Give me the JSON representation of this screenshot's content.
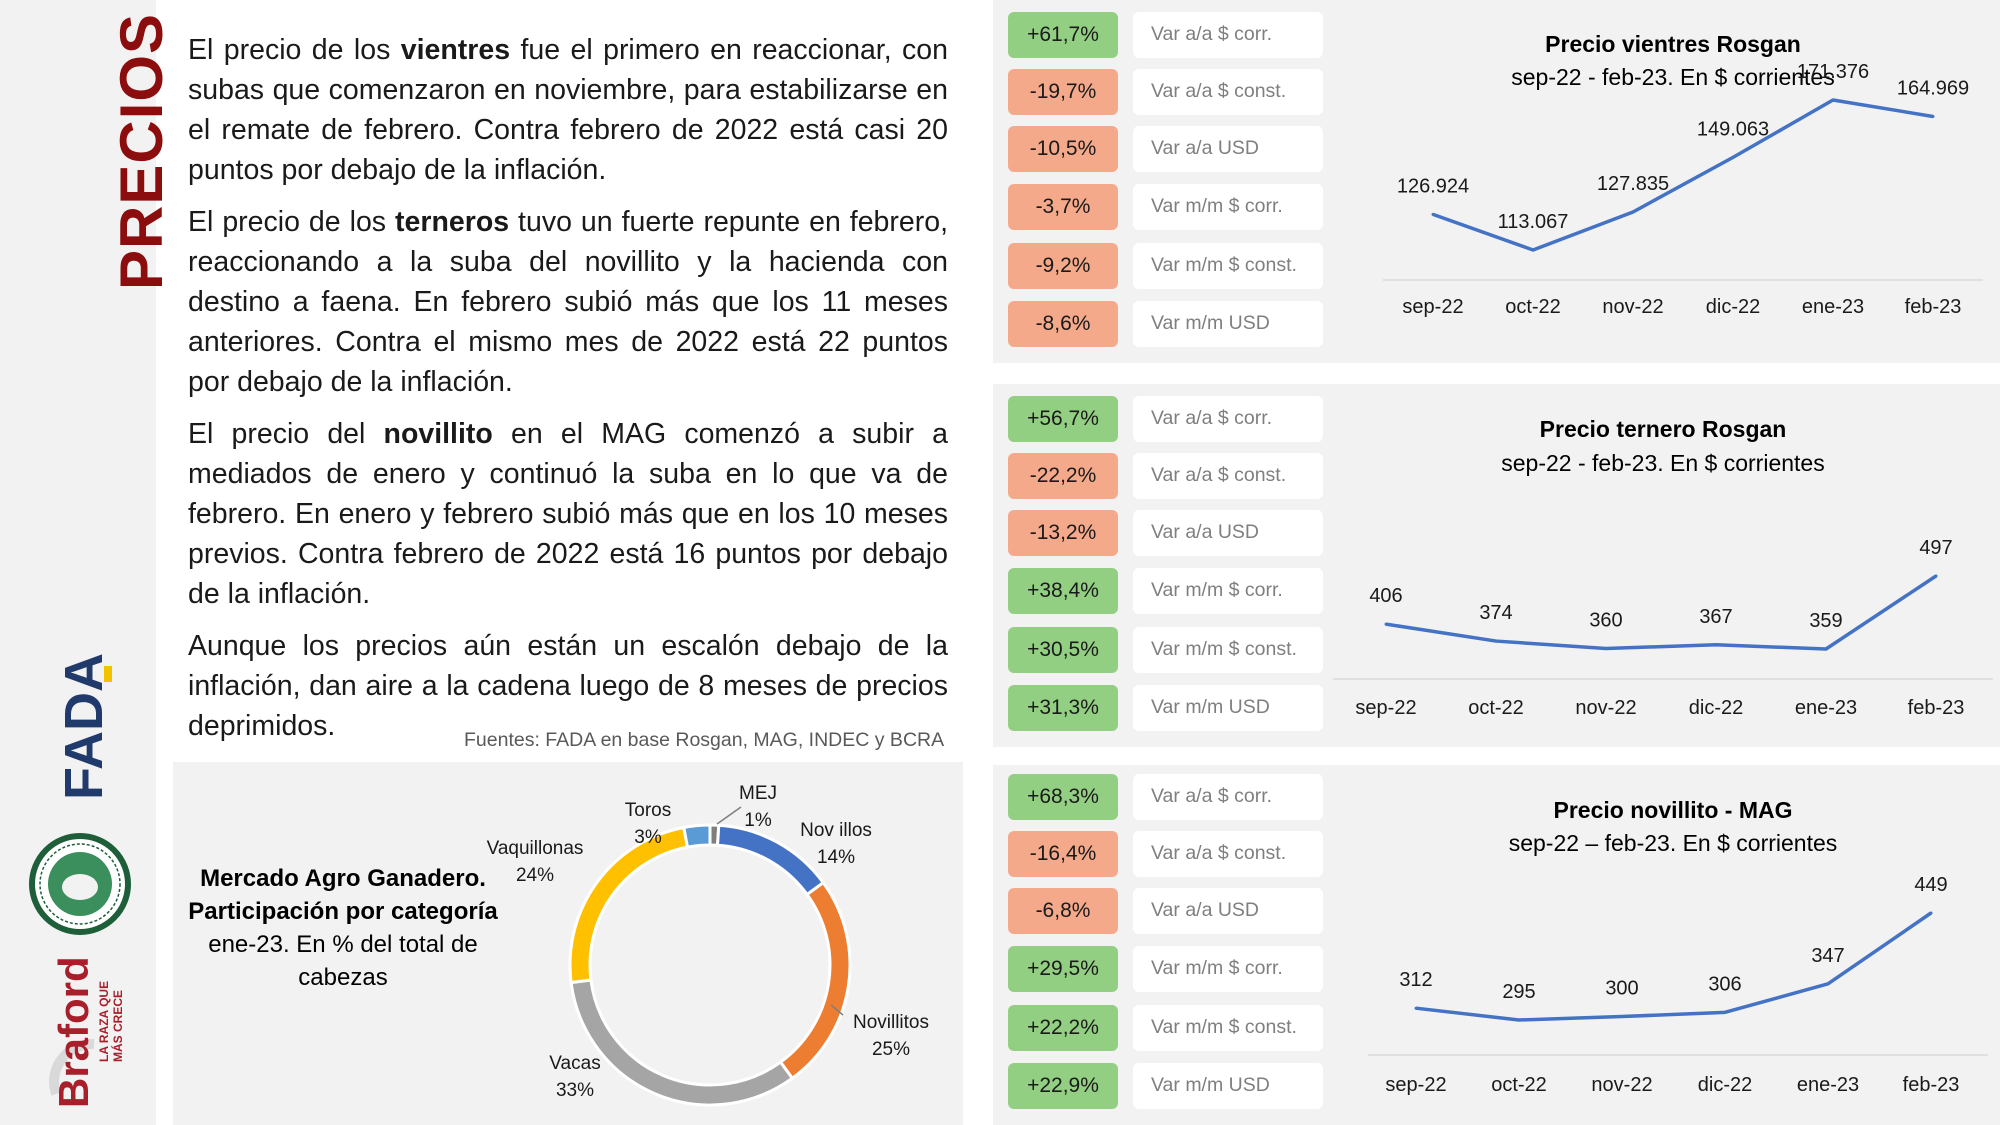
{
  "sidebar": {
    "title": "PRECIOS"
  },
  "text": {
    "p1": {
      "pre": "El precio de los ",
      "bold": "vientres",
      "post": " fue el primero en reaccionar, con subas que comenzaron en noviembre, para estabilizarse en el remate de febrero. Contra febrero de 2022 está casi 20 puntos por debajo de la inflación."
    },
    "p2": {
      "pre": "El precio de los ",
      "bold": "terneros",
      "post": " tuvo un fuerte repunte en febrero, reaccionando a la suba del novillito y la hacienda con destino a faena. En febrero subió más que los 11 meses anteriores. Contra el mismo mes de 2022 está 22 puntos por debajo de la inflación."
    },
    "p3": {
      "pre": "El precio del ",
      "bold": "novillito",
      "post": " en el MAG comenzó a subir a mediados de enero y continuó la suba en lo que va de febrero. En enero y febrero subió más que en los 10 meses previos. Contra febrero de 2022 está 16 puntos por debajo de la inflación."
    },
    "p4": "Aunque los precios aún están un escalón debajo de la inflación, dan aire a la cadena luego de 8 meses de precios deprimidos.",
    "sources": "Fuentes: FADA en base Rosgan, MAG, INDEC y BCRA"
  },
  "pie_title": {
    "bold": "Mercado Agro Ganadero. Participación por categoría",
    "sub": "ene-23. En % del total de cabezas"
  },
  "colors": {
    "line": "#4472c4",
    "pos": "#93cf82",
    "neg": "#f4a98a"
  },
  "panels": [
    {
      "badges": [
        {
          "value": "+61,7%",
          "label": "Var a/a $ corr.",
          "tone": "pos"
        },
        {
          "value": "-19,7%",
          "label": "Var a/a $ const.",
          "tone": "neg"
        },
        {
          "value": "-10,5%",
          "label": "Var a/a USD",
          "tone": "neg"
        },
        {
          "value": "-3,7%",
          "label": "Var m/m $ corr.",
          "tone": "neg"
        },
        {
          "value": "-9,2%",
          "label": "Var m/m $ const.",
          "tone": "neg"
        },
        {
          "value": "-8,6%",
          "label": "Var m/m USD",
          "tone": "neg"
        }
      ]
    },
    {
      "badges": [
        {
          "value": "+56,7%",
          "label": "Var a/a $ corr.",
          "tone": "pos"
        },
        {
          "value": "-22,2%",
          "label": "Var a/a $ const.",
          "tone": "neg"
        },
        {
          "value": "-13,2%",
          "label": "Var a/a USD",
          "tone": "neg"
        },
        {
          "value": "+38,4%",
          "label": "Var m/m $ corr.",
          "tone": "pos"
        },
        {
          "value": "+30,5%",
          "label": "Var m/m $ const.",
          "tone": "pos"
        },
        {
          "value": "+31,3%",
          "label": "Var m/m USD",
          "tone": "pos"
        }
      ]
    },
    {
      "badges": [
        {
          "value": "+68,3%",
          "label": "Var a/a $ corr.",
          "tone": "pos"
        },
        {
          "value": "-16,4%",
          "label": "Var a/a $ const.",
          "tone": "neg"
        },
        {
          "value": "-6,8%",
          "label": "Var a/a USD",
          "tone": "neg"
        },
        {
          "value": "+29,5%",
          "label": "Var m/m $ corr.",
          "tone": "pos"
        },
        {
          "value": "+22,2%",
          "label": "Var m/m $ const.",
          "tone": "pos"
        },
        {
          "value": "+22,9%",
          "label": "Var m/m USD",
          "tone": "pos"
        }
      ]
    }
  ],
  "chart_data": [
    {
      "type": "line",
      "title": "Precio vientres Rosgan",
      "subtitle": "sep-22 - feb-23. En $ corrientes",
      "categories": [
        "sep-22",
        "oct-22",
        "nov-22",
        "dic-22",
        "ene-23",
        "feb-23"
      ],
      "values": [
        126924,
        113067,
        127835,
        149063,
        171376,
        164969
      ],
      "labels": [
        "126.924",
        "113.067",
        "127.835",
        "149.063",
        "171.376",
        "164.969"
      ],
      "color": "#4472c4",
      "grid": false
    },
    {
      "type": "line",
      "title": "Precio ternero Rosgan",
      "subtitle": "sep-22 - feb-23. En $ corrientes",
      "categories": [
        "sep-22",
        "oct-22",
        "nov-22",
        "dic-22",
        "ene-23",
        "feb-23"
      ],
      "values": [
        406,
        374,
        360,
        367,
        359,
        497
      ],
      "labels": [
        "406",
        "374",
        "360",
        "367",
        "359",
        "497"
      ],
      "color": "#4472c4",
      "grid": false
    },
    {
      "type": "line",
      "title": "Precio novillito - MAG",
      "subtitle": "sep-22 – feb-23. En $ corrientes",
      "categories": [
        "sep-22",
        "oct-22",
        "nov-22",
        "dic-22",
        "ene-23",
        "feb-23"
      ],
      "values": [
        312,
        295,
        300,
        306,
        347,
        449
      ],
      "labels": [
        "312",
        "295",
        "300",
        "306",
        "347",
        "449"
      ],
      "color": "#4472c4",
      "grid": false
    },
    {
      "type": "pie",
      "donut": true,
      "categories": [
        "MEJ",
        "Nov illos",
        "Novillitos",
        "Vacas",
        "Vaquillonas",
        "Toros"
      ],
      "values": [
        1,
        14,
        25,
        33,
        24,
        3
      ],
      "labels": [
        "1%",
        "14%",
        "25%",
        "33%",
        "24%",
        "3%"
      ],
      "colors": [
        "#7f7f7f",
        "#4472c4",
        "#ed7d31",
        "#a5a5a5",
        "#ffc000",
        "#5b9bd5"
      ]
    }
  ]
}
